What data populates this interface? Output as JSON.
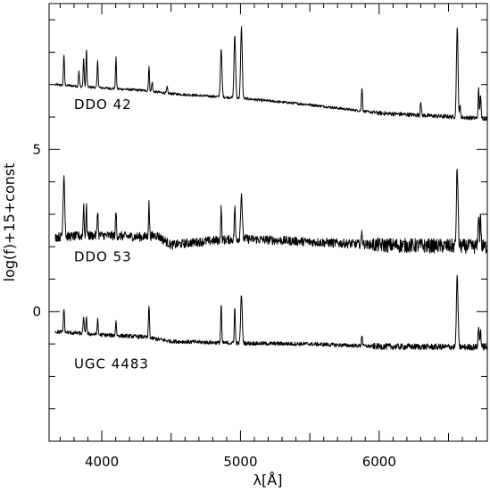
{
  "chart_data": {
    "type": "line",
    "title": "",
    "xlabel": "λ[Å]",
    "ylabel": "log(f)+15+const",
    "xlim": [
      3620,
      6780
    ],
    "ylim": [
      -4,
      9.5
    ],
    "x_ticks": [
      4000,
      5000,
      6000
    ],
    "x_tick_labels": [
      "4000",
      "5000",
      "6000"
    ],
    "y_ticks": [
      0,
      5
    ],
    "y_tick_labels": [
      "0",
      "5"
    ],
    "grid": false,
    "legend": "none",
    "series": [
      {
        "name": "DDO 42",
        "continuum": [
          [
            3660,
            7.0
          ],
          [
            4000,
            6.9
          ],
          [
            4300,
            6.82
          ],
          [
            4500,
            6.72
          ],
          [
            5000,
            6.58
          ],
          [
            5500,
            6.38
          ],
          [
            6000,
            6.12
          ],
          [
            6780,
            5.95
          ]
        ],
        "lines": [
          [
            3727,
            0.95
          ],
          [
            3835,
            0.45
          ],
          [
            3869,
            0.9
          ],
          [
            3889,
            1.15
          ],
          [
            3970,
            0.85
          ],
          [
            4102,
            0.95
          ],
          [
            4340,
            0.75
          ],
          [
            4363,
            0.3
          ],
          [
            4471,
            0.2
          ],
          [
            4861,
            1.45
          ],
          [
            4959,
            1.9
          ],
          [
            5007,
            2.2
          ],
          [
            5876,
            0.75
          ],
          [
            6300,
            0.45
          ],
          [
            6563,
            2.75
          ],
          [
            6584,
            0.35
          ],
          [
            6717,
            0.9
          ],
          [
            6731,
            0.75
          ]
        ],
        "noise": 0.04
      },
      {
        "name": "DDO 53",
        "continuum": [
          [
            3660,
            2.3
          ],
          [
            4000,
            2.35
          ],
          [
            4300,
            2.3
          ],
          [
            4400,
            2.35
          ],
          [
            4500,
            2.05
          ],
          [
            4700,
            2.15
          ],
          [
            5000,
            2.25
          ],
          [
            5500,
            2.15
          ],
          [
            6000,
            2.05
          ],
          [
            6780,
            2.0
          ]
        ],
        "lines": [
          [
            3727,
            1.9
          ],
          [
            3869,
            1.0
          ],
          [
            3889,
            0.9
          ],
          [
            3970,
            0.8
          ],
          [
            4102,
            0.75
          ],
          [
            4340,
            1.0
          ],
          [
            4861,
            1.0
          ],
          [
            4959,
            1.0
          ],
          [
            5007,
            1.4
          ],
          [
            5876,
            0.4
          ],
          [
            6563,
            2.4
          ],
          [
            6717,
            1.1
          ],
          [
            6731,
            1.0
          ]
        ],
        "noise": 0.14
      },
      {
        "name": "UGC 4483",
        "continuum": [
          [
            3660,
            -0.62
          ],
          [
            4000,
            -0.72
          ],
          [
            4300,
            -0.78
          ],
          [
            4500,
            -0.92
          ],
          [
            5000,
            -0.98
          ],
          [
            5500,
            -1.0
          ],
          [
            6000,
            -1.08
          ],
          [
            6780,
            -1.1
          ]
        ],
        "lines": [
          [
            3727,
            0.75
          ],
          [
            3869,
            0.55
          ],
          [
            3889,
            0.55
          ],
          [
            3970,
            0.45
          ],
          [
            4102,
            0.45
          ],
          [
            4340,
            1.0
          ],
          [
            4861,
            1.2
          ],
          [
            4959,
            1.1
          ],
          [
            5007,
            1.5
          ],
          [
            5876,
            0.35
          ],
          [
            6563,
            2.2
          ],
          [
            6717,
            0.65
          ],
          [
            6731,
            0.55
          ]
        ],
        "noise": 0.06
      }
    ]
  }
}
